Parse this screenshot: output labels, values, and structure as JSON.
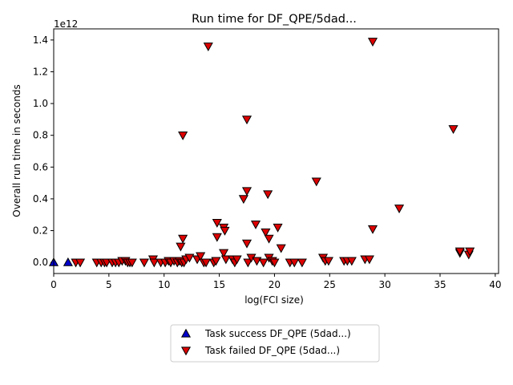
{
  "chart_data": {
    "type": "scatter",
    "title": "Run time for DF_QPE/5dad...",
    "xlabel": "log(FCI size)",
    "ylabel": "Overall run time in seconds",
    "y_offset_label": "1e12",
    "xlim": [
      0,
      40.3
    ],
    "ylim": [
      -0.07,
      1.47
    ],
    "xticks": [
      0,
      5,
      10,
      15,
      20,
      25,
      30,
      35,
      40
    ],
    "yticks": [
      0.0,
      0.2,
      0.4,
      0.6,
      0.8,
      1.0,
      1.2,
      1.4
    ],
    "ytick_labels": [
      "0.0",
      "0.2",
      "0.4",
      "0.6",
      "0.8",
      "1.0",
      "1.2",
      "1.4"
    ],
    "grid": false,
    "legend_position": "below-center",
    "series": [
      {
        "name": "Task success DF_QPE (5dad...)",
        "marker": "triangle-up",
        "color": "#0000cc",
        "points": [
          [
            0.0,
            0.0
          ],
          [
            1.3,
            0.0
          ]
        ]
      },
      {
        "name": "Task failed DF_QPE (5dad...)",
        "marker": "triangle-down",
        "color": "#dd0000",
        "points": [
          [
            2.0,
            0.0
          ],
          [
            2.4,
            0.0
          ],
          [
            3.9,
            0.0
          ],
          [
            4.3,
            0.0
          ],
          [
            4.6,
            0.0
          ],
          [
            4.8,
            0.0
          ],
          [
            5.3,
            0.0
          ],
          [
            5.6,
            0.0
          ],
          [
            5.9,
            0.0
          ],
          [
            6.2,
            0.01
          ],
          [
            6.5,
            0.01
          ],
          [
            6.7,
            0.0
          ],
          [
            6.9,
            0.0
          ],
          [
            7.1,
            0.0
          ],
          [
            8.2,
            0.0
          ],
          [
            9.0,
            0.02
          ],
          [
            9.1,
            0.0
          ],
          [
            9.7,
            0.0
          ],
          [
            10.1,
            0.0
          ],
          [
            10.4,
            0.01
          ],
          [
            10.6,
            0.0
          ],
          [
            10.9,
            0.01
          ],
          [
            11.2,
            0.0
          ],
          [
            11.4,
            0.01
          ],
          [
            11.6,
            0.0
          ],
          [
            11.5,
            0.1
          ],
          [
            11.7,
            0.15
          ],
          [
            11.7,
            0.8
          ],
          [
            11.8,
            0.0
          ],
          [
            12.0,
            0.02
          ],
          [
            12.3,
            0.03
          ],
          [
            13.0,
            0.02
          ],
          [
            13.3,
            0.04
          ],
          [
            13.6,
            0.0
          ],
          [
            13.8,
            0.0
          ],
          [
            14.0,
            1.36
          ],
          [
            14.5,
            0.0
          ],
          [
            14.7,
            0.01
          ],
          [
            14.8,
            0.16
          ],
          [
            14.8,
            0.25
          ],
          [
            15.4,
            0.22
          ],
          [
            15.5,
            0.2
          ],
          [
            15.4,
            0.06
          ],
          [
            15.6,
            0.02
          ],
          [
            16.2,
            0.02
          ],
          [
            16.4,
            0.0
          ],
          [
            16.6,
            0.02
          ],
          [
            17.2,
            0.4
          ],
          [
            17.5,
            0.45
          ],
          [
            17.5,
            0.9
          ],
          [
            17.5,
            0.12
          ],
          [
            17.6,
            0.0
          ],
          [
            17.9,
            0.03
          ],
          [
            18.3,
            0.24
          ],
          [
            18.4,
            0.01
          ],
          [
            19.0,
            0.0
          ],
          [
            19.2,
            0.19
          ],
          [
            19.4,
            0.43
          ],
          [
            19.5,
            0.15
          ],
          [
            19.5,
            0.03
          ],
          [
            19.8,
            0.01
          ],
          [
            20.0,
            0.0
          ],
          [
            20.3,
            0.22
          ],
          [
            20.6,
            0.09
          ],
          [
            21.4,
            0.0
          ],
          [
            21.8,
            0.0
          ],
          [
            22.5,
            0.0
          ],
          [
            23.8,
            0.51
          ],
          [
            24.4,
            0.03
          ],
          [
            24.6,
            0.01
          ],
          [
            24.9,
            0.01
          ],
          [
            26.3,
            0.01
          ],
          [
            26.6,
            0.01
          ],
          [
            27.0,
            0.01
          ],
          [
            28.2,
            0.02
          ],
          [
            28.6,
            0.02
          ],
          [
            28.9,
            1.39
          ],
          [
            28.9,
            0.21
          ],
          [
            31.3,
            0.34
          ],
          [
            36.2,
            0.84
          ],
          [
            36.8,
            0.06
          ],
          [
            36.8,
            0.07
          ],
          [
            37.6,
            0.05
          ],
          [
            37.7,
            0.07
          ]
        ]
      }
    ]
  }
}
